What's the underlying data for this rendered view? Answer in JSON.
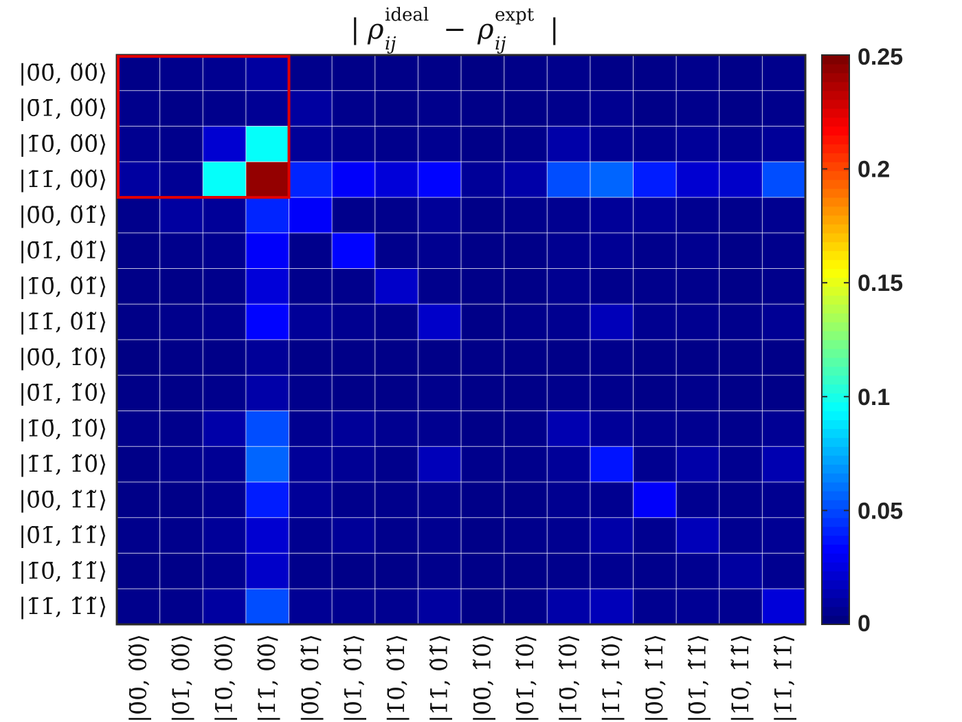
{
  "chart_data": {
    "type": "heatmap",
    "title": "| ρ_ij^ideal − ρ_ij^expt |",
    "title_parts": {
      "left": "|",
      "rho1": "ρ",
      "sub1": "ij",
      "sup1": "ideal",
      "minus": "−",
      "rho2": "ρ",
      "sub2": "ij",
      "sup2": "expt",
      "right": "|"
    },
    "row_labels": [
      "|0̄0̄, 0̃0̃⟩",
      "|0̄1̄, 0̃0̃⟩",
      "|1̄0̄, 0̃0̃⟩",
      "|1̄1̄, 0̃0̃⟩",
      "|0̄0̄, 0̃1̃⟩",
      "|0̄1̄, 0̃1̃⟩",
      "|1̄0̄, 0̃1̃⟩",
      "|1̄1̄, 0̃1̃⟩",
      "|0̄0̄, 1̃0̃⟩",
      "|0̄1̄, 1̃0̃⟩",
      "|1̄0̄, 1̃0̃⟩",
      "|1̄1̄, 1̃0̃⟩",
      "|0̄0̄, 1̃1̃⟩",
      "|0̄1̄, 1̃1̃⟩",
      "|1̄0̄, 1̃1̃⟩",
      "|1̄1̄, 1̃1̃⟩"
    ],
    "col_labels": [
      "|0̄0̄, 0̃0̃⟩",
      "|0̄1̄, 0̃0̃⟩",
      "|1̄0̄, 0̃0̃⟩",
      "|1̄1̄, 0̃0̃⟩",
      "|0̄0̄, 0̃1̃⟩",
      "|0̄1̄, 0̃1̃⟩",
      "|1̄0̄, 0̃1̃⟩",
      "|1̄1̄, 0̃1̃⟩",
      "|0̄0̄, 1̃0̃⟩",
      "|0̄1̄, 1̃0̃⟩",
      "|1̄0̄, 1̃0̃⟩",
      "|1̄1̄, 1̃0̃⟩",
      "|0̄0̄, 1̃1̃⟩",
      "|0̄1̄, 1̃1̃⟩",
      "|1̄0̄, 1̃1̃⟩",
      "|1̄1̄, 1̃1̃⟩"
    ],
    "values": [
      [
        0.002,
        0.003,
        0.004,
        0.008,
        0.003,
        0.002,
        0.002,
        0.002,
        0.001,
        0.002,
        0.003,
        0.002,
        0.002,
        0.003,
        0.002,
        0.003
      ],
      [
        0.003,
        0.002,
        0.003,
        0.005,
        0.008,
        0.003,
        0.002,
        0.003,
        0.002,
        0.002,
        0.003,
        0.004,
        0.002,
        0.003,
        0.002,
        0.003
      ],
      [
        0.004,
        0.003,
        0.02,
        0.095,
        0.006,
        0.004,
        0.003,
        0.004,
        0.002,
        0.003,
        0.01,
        0.005,
        0.004,
        0.006,
        0.004,
        0.006
      ],
      [
        0.008,
        0.005,
        0.095,
        0.245,
        0.04,
        0.03,
        0.022,
        0.032,
        0.006,
        0.01,
        0.05,
        0.056,
        0.038,
        0.02,
        0.018,
        0.05
      ],
      [
        0.003,
        0.008,
        0.006,
        0.04,
        0.03,
        0.003,
        0.003,
        0.006,
        0.002,
        0.003,
        0.004,
        0.006,
        0.006,
        0.004,
        0.003,
        0.004
      ],
      [
        0.002,
        0.003,
        0.004,
        0.03,
        0.003,
        0.032,
        0.003,
        0.004,
        0.002,
        0.002,
        0.004,
        0.005,
        0.003,
        0.004,
        0.002,
        0.003
      ],
      [
        0.002,
        0.002,
        0.003,
        0.022,
        0.003,
        0.003,
        0.018,
        0.003,
        0.002,
        0.002,
        0.004,
        0.003,
        0.003,
        0.003,
        0.002,
        0.003
      ],
      [
        0.002,
        0.003,
        0.004,
        0.032,
        0.006,
        0.004,
        0.003,
        0.018,
        0.002,
        0.003,
        0.004,
        0.014,
        0.004,
        0.004,
        0.003,
        0.005
      ],
      [
        0.001,
        0.002,
        0.002,
        0.006,
        0.002,
        0.002,
        0.002,
        0.002,
        0.002,
        0.002,
        0.002,
        0.003,
        0.002,
        0.002,
        0.002,
        0.002
      ],
      [
        0.002,
        0.002,
        0.003,
        0.01,
        0.003,
        0.002,
        0.002,
        0.003,
        0.002,
        0.002,
        0.003,
        0.003,
        0.002,
        0.003,
        0.002,
        0.002
      ],
      [
        0.003,
        0.003,
        0.01,
        0.05,
        0.004,
        0.006,
        0.004,
        0.004,
        0.002,
        0.003,
        0.012,
        0.006,
        0.004,
        0.004,
        0.003,
        0.005
      ],
      [
        0.002,
        0.004,
        0.005,
        0.056,
        0.006,
        0.005,
        0.003,
        0.014,
        0.003,
        0.003,
        0.006,
        0.036,
        0.004,
        0.01,
        0.004,
        0.012
      ],
      [
        0.002,
        0.002,
        0.004,
        0.038,
        0.006,
        0.003,
        0.003,
        0.004,
        0.002,
        0.002,
        0.004,
        0.004,
        0.03,
        0.004,
        0.003,
        0.004
      ],
      [
        0.003,
        0.003,
        0.006,
        0.02,
        0.004,
        0.006,
        0.003,
        0.004,
        0.002,
        0.003,
        0.004,
        0.01,
        0.004,
        0.014,
        0.004,
        0.005
      ],
      [
        0.002,
        0.002,
        0.004,
        0.018,
        0.003,
        0.002,
        0.002,
        0.003,
        0.002,
        0.002,
        0.003,
        0.004,
        0.003,
        0.004,
        0.008,
        0.004
      ],
      [
        0.003,
        0.003,
        0.008,
        0.05,
        0.005,
        0.004,
        0.004,
        0.008,
        0.002,
        0.003,
        0.01,
        0.014,
        0.004,
        0.005,
        0.004,
        0.022
      ]
    ],
    "colorbar": {
      "min": 0,
      "max": 0.25,
      "colormap": "jet",
      "ticks": [
        0,
        0.05,
        0.1,
        0.15,
        0.2,
        0.25
      ],
      "tick_labels": [
        "0",
        "0.05",
        "0.1",
        "0.15",
        "0.2",
        "0.25"
      ]
    },
    "highlight_box": {
      "rows": [
        0,
        3
      ],
      "cols": [
        0,
        3
      ],
      "color": "#e00000"
    },
    "grid": true
  }
}
